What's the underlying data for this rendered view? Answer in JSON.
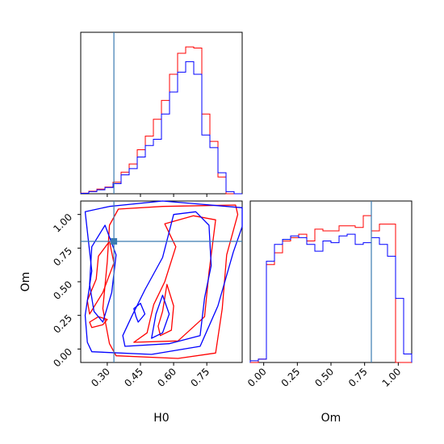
{
  "chart_data": {
    "type": "corner",
    "parameters": [
      "H0",
      "Om"
    ],
    "truths": {
      "H0": 0.33,
      "Om": 0.8
    },
    "truth_color": "#3b7bb1",
    "xlabels": {
      "H0": "H0",
      "Om": "Om"
    },
    "ylabel_Om": "Om",
    "ranges": {
      "H0": [
        0.18,
        0.91
      ],
      "Om": [
        -0.1,
        1.1
      ]
    },
    "ticks": {
      "H0": [
        "0.30",
        "0.45",
        "0.60",
        "0.75"
      ],
      "Om_bottom": [
        "0.00",
        "0.25",
        "0.50",
        "0.75",
        "1.00"
      ],
      "Om_left": [
        "0.00",
        "0.25",
        "0.50",
        "0.75",
        "1.00"
      ]
    },
    "series": [
      {
        "name": "",
        "color": "#ff0000",
        "H0_hist": {
          "edges": [
            0.18,
            0.2165,
            0.253,
            0.2895,
            0.326,
            0.3625,
            0.399,
            0.4355,
            0.472,
            0.5085,
            0.545,
            0.5815,
            0.618,
            0.6545,
            0.691,
            0.7275,
            0.764,
            0.8005,
            0.837,
            0.8735,
            0.91
          ],
          "counts": [
            0.3,
            1.2,
            2.2,
            3.2,
            5.5,
            10.3,
            14.2,
            21.0,
            27.5,
            35.5,
            44.5,
            57.0,
            67.0,
            70.0,
            69.5,
            38.0,
            25.0,
            8.0,
            0,
            0
          ]
        },
        "Om_hist": {
          "edges": [
            -0.1,
            -0.04,
            0.02,
            0.08,
            0.14,
            0.2,
            0.26,
            0.32,
            0.38,
            0.44,
            0.5,
            0.56,
            0.62,
            0.68,
            0.74,
            0.8,
            0.86,
            0.92,
            0.98,
            1.04,
            1.1
          ],
          "counts": [
            0,
            2,
            58,
            65,
            72,
            74,
            76,
            72,
            79,
            78,
            78,
            81,
            81,
            80,
            87,
            78,
            82,
            82,
            0,
            0
          ]
        }
      },
      {
        "name": "",
        "color": "#0000ff",
        "H0_hist": {
          "edges": [
            0.18,
            0.2165,
            0.253,
            0.2895,
            0.326,
            0.3625,
            0.399,
            0.4355,
            0.472,
            0.5085,
            0.545,
            0.5815,
            0.618,
            0.6545,
            0.691,
            0.7275,
            0.764,
            0.8005,
            0.837,
            0.8735,
            0.91
          ],
          "counts": [
            0.2,
            1.0,
            1.9,
            3.0,
            4.8,
            9.0,
            12.0,
            17.5,
            23.0,
            26.0,
            38.0,
            48.5,
            58.0,
            63.0,
            57.0,
            28.0,
            22.0,
            10.0,
            1.0,
            0
          ]
        },
        "Om_hist": {
          "edges": [
            -0.1,
            -0.04,
            0.02,
            0.08,
            0.14,
            0.2,
            0.26,
            0.32,
            0.38,
            0.44,
            0.5,
            0.56,
            0.62,
            0.68,
            0.74,
            0.8,
            0.86,
            0.92,
            0.98,
            1.04,
            1.1
          ],
          "counts": [
            1,
            2,
            60,
            70,
            73,
            75,
            74,
            70,
            66,
            72,
            71,
            75,
            76,
            70,
            71,
            74,
            70,
            63,
            38,
            5
          ]
        }
      }
    ],
    "contours": [
      {
        "color": "#ff0000",
        "points": [
          [
            0.34,
            -0.05
          ],
          [
            0.62,
            -0.07
          ],
          [
            0.79,
            -0.03
          ],
          [
            0.82,
            0.3
          ],
          [
            0.84,
            0.7
          ],
          [
            0.89,
            1.0
          ],
          [
            0.88,
            1.07
          ],
          [
            0.55,
            1.06
          ],
          [
            0.35,
            1.04
          ],
          [
            0.31,
            0.92
          ],
          [
            0.3,
            0.65
          ],
          [
            0.28,
            0.3
          ],
          [
            0.31,
            0.04
          ]
        ]
      },
      {
        "color": "#ff0000",
        "points": [
          [
            0.42,
            0.05
          ],
          [
            0.62,
            0.06
          ],
          [
            0.74,
            0.24
          ],
          [
            0.76,
            0.57
          ],
          [
            0.79,
            0.96
          ],
          [
            0.69,
            0.99
          ],
          [
            0.56,
            0.93
          ],
          [
            0.61,
            0.76
          ],
          [
            0.56,
            0.5
          ],
          [
            0.51,
            0.33
          ],
          [
            0.48,
            0.12
          ]
        ]
      },
      {
        "color": "#ff0000",
        "points": [
          [
            0.22,
            0.26
          ],
          [
            0.28,
            0.42
          ],
          [
            0.33,
            0.64
          ],
          [
            0.31,
            0.8
          ],
          [
            0.26,
            0.69
          ],
          [
            0.25,
            0.52
          ],
          [
            0.21,
            0.36
          ]
        ]
      },
      {
        "color": "#ff0000",
        "points": [
          [
            0.54,
            0.1
          ],
          [
            0.59,
            0.14
          ],
          [
            0.6,
            0.32
          ],
          [
            0.57,
            0.48
          ],
          [
            0.55,
            0.28
          ],
          [
            0.53,
            0.17
          ]
        ]
      },
      {
        "color": "#ff0000",
        "points": [
          [
            0.23,
            0.16
          ],
          [
            0.28,
            0.18
          ],
          [
            0.3,
            0.22
          ],
          [
            0.26,
            0.24
          ],
          [
            0.22,
            0.2
          ]
        ]
      },
      {
        "color": "#0000ff",
        "points": [
          [
            0.23,
            -0.02
          ],
          [
            0.5,
            -0.04
          ],
          [
            0.72,
            0.02
          ],
          [
            0.8,
            0.32
          ],
          [
            0.87,
            0.72
          ],
          [
            0.91,
            0.91
          ],
          [
            0.91,
            1.05
          ],
          [
            0.55,
            1.1
          ],
          [
            0.31,
            1.06
          ],
          [
            0.2,
            1.02
          ],
          [
            0.23,
            0.58
          ],
          [
            0.2,
            0.25
          ],
          [
            0.21,
            0.05
          ]
        ]
      },
      {
        "color": "#0000ff",
        "points": [
          [
            0.38,
            0.02
          ],
          [
            0.58,
            0.04
          ],
          [
            0.72,
            0.1
          ],
          [
            0.74,
            0.38
          ],
          [
            0.77,
            0.62
          ],
          [
            0.76,
            0.92
          ],
          [
            0.7,
            1.02
          ],
          [
            0.6,
            1.0
          ],
          [
            0.55,
            0.68
          ],
          [
            0.47,
            0.44
          ],
          [
            0.41,
            0.24
          ],
          [
            0.37,
            0.1
          ]
        ]
      },
      {
        "color": "#0000ff",
        "points": [
          [
            0.28,
            0.2
          ],
          [
            0.32,
            0.42
          ],
          [
            0.34,
            0.7
          ],
          [
            0.29,
            0.92
          ],
          [
            0.23,
            0.76
          ],
          [
            0.22,
            0.48
          ],
          [
            0.24,
            0.28
          ]
        ]
      },
      {
        "color": "#0000ff",
        "points": [
          [
            0.5,
            0.08
          ],
          [
            0.55,
            0.12
          ],
          [
            0.58,
            0.26
          ],
          [
            0.55,
            0.4
          ],
          [
            0.52,
            0.26
          ]
        ]
      },
      {
        "color": "#0000ff",
        "points": [
          [
            0.44,
            0.2
          ],
          [
            0.47,
            0.26
          ],
          [
            0.45,
            0.34
          ],
          [
            0.42,
            0.3
          ],
          [
            0.43,
            0.24
          ]
        ]
      }
    ]
  }
}
